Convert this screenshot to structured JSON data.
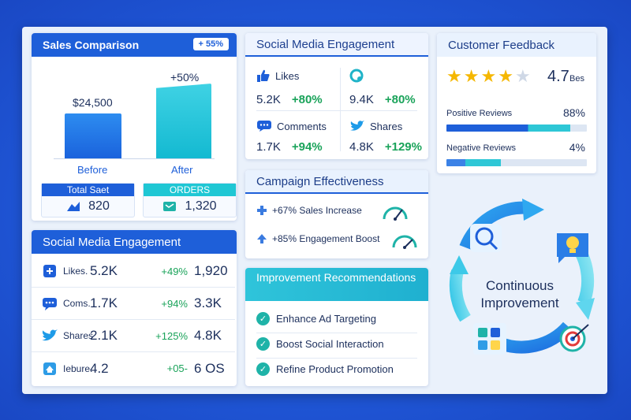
{
  "sales": {
    "title": "Sales Comparison",
    "badge": "+ 55%",
    "before_value": "$24,500",
    "after_change": "+50%",
    "before_label": "Before",
    "after_label": "After",
    "total_label": "Total Saet",
    "total_value": "820",
    "orders_label": "ORDERS",
    "orders_value": "1,320"
  },
  "social_top": {
    "title": "Social Media Engagement",
    "likes_label": "Likes",
    "likes_value": "5.2K",
    "likes_change": "+80%",
    "share_value": "9.4K",
    "share_change": "+80%",
    "comments_label": "Comments",
    "comments_value": "1.7K",
    "comments_change": "+94%",
    "shares_label": "Shares",
    "shares_value": "4.8K",
    "shares_change": "+129%"
  },
  "feedback": {
    "title": "Customer Feedback",
    "rating": "4.7",
    "rating_suffix": "Bes",
    "stars_filled": 4,
    "stars_total": 5,
    "positive_label": "Positive Reviews",
    "positive_value": "88%",
    "negative_label": "Negative Reviews",
    "negative_value": "4%"
  },
  "campaign": {
    "title": "Campaign Effectiveness",
    "row1": "+67% Sales Increase",
    "row2": "+85% Engagement Boost"
  },
  "social_list": {
    "title": "Social Media Engagement",
    "rows": [
      {
        "name": "Likes.",
        "v1": "5.2K",
        "pct": "+49%",
        "v2": "1,920"
      },
      {
        "name": "Coms.",
        "v1": "1.7K",
        "pct": "+94%",
        "v2": "3.3K"
      },
      {
        "name": "Shares",
        "v1": "2.1K",
        "pct": "+125%",
        "v2": "4.8K"
      },
      {
        "name": "Iebure.",
        "v1": "4.2",
        "pct": "+05-",
        "v2": "6 OS"
      }
    ]
  },
  "recommendations": {
    "title": "Improvement Recommendations",
    "items": [
      "Enhance Ad Targeting",
      "Boost Social Interaction",
      "Refine Product Promotion"
    ]
  },
  "cycle": {
    "line1": "Continuous",
    "line2": "Improvement"
  },
  "colors": {
    "primary": "#1e5fd9",
    "teal": "#1fc7d4",
    "green": "#1aa35a"
  }
}
